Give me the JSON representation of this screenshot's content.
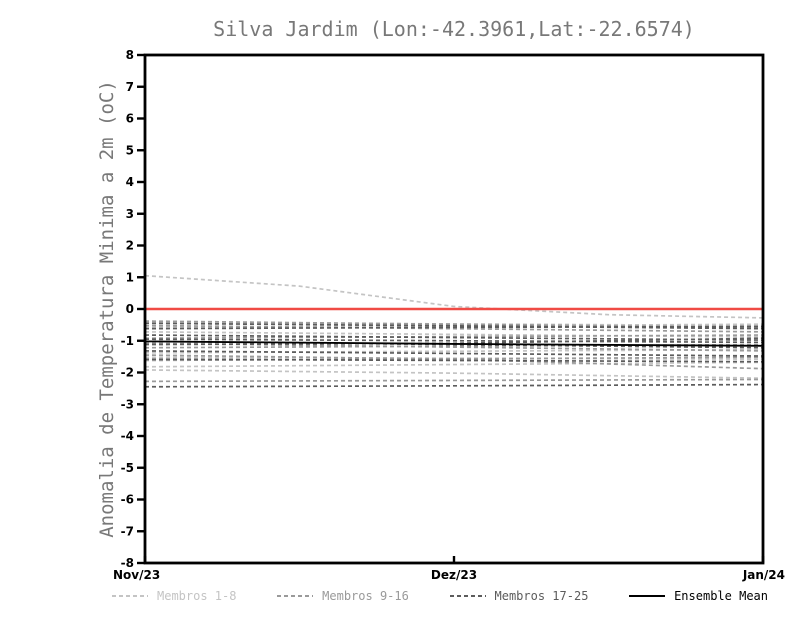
{
  "chart_data": {
    "type": "line",
    "title": "Silva Jardim (Lon:-42.3961,Lat:-22.6574)",
    "ylabel": "Anomalia de Temperatura Minima a 2m (oC)",
    "xlabel": "",
    "x_ticks": [
      "Nov/23",
      "Dez/23",
      "Jan/24"
    ],
    "x_tick_positions": [
      0,
      0.5,
      1
    ],
    "y_range": [
      -8,
      8
    ],
    "y_tick_step": 1,
    "grid": false,
    "frame_color": "#000000",
    "zero_line": {
      "value": 0,
      "color": "#f04b45"
    },
    "groups": [
      {
        "name": "Membros 1-8",
        "color": "#c4c4c4",
        "dashed": true
      },
      {
        "name": "Membros 9-16",
        "color": "#9a9a9a",
        "dashed": true
      },
      {
        "name": "Membros 17-25",
        "color": "#5c5c5c",
        "dashed": true
      }
    ],
    "members": [
      {
        "group": 0,
        "points": [
          1.05,
          0.72,
          0.08,
          -0.18,
          -0.28
        ]
      },
      {
        "group": 0,
        "points": [
          -0.42,
          -0.47,
          -0.52
        ]
      },
      {
        "group": 0,
        "points": [
          -0.58,
          -0.53,
          -0.48
        ]
      },
      {
        "group": 0,
        "points": [
          -0.72,
          -0.8,
          -0.88
        ]
      },
      {
        "group": 0,
        "points": [
          -1.38,
          -1.33,
          -1.28
        ]
      },
      {
        "group": 0,
        "points": [
          -1.82,
          -1.75,
          -1.68
        ]
      },
      {
        "group": 0,
        "points": [
          -1.92,
          -2.02,
          -2.18
        ]
      },
      {
        "group": 0,
        "points": [
          -1.52,
          -1.55,
          -1.58
        ]
      },
      {
        "group": 1,
        "points": [
          -0.38,
          -0.48,
          -0.58
        ]
      },
      {
        "group": 1,
        "points": [
          -0.52,
          -0.62,
          -0.72
        ]
      },
      {
        "group": 1,
        "points": [
          -0.92,
          -0.87,
          -0.82
        ]
      },
      {
        "group": 1,
        "points": [
          -1.08,
          -1.2,
          -1.32
        ]
      },
      {
        "group": 1,
        "points": [
          -1.22,
          -1.17,
          -1.12
        ]
      },
      {
        "group": 1,
        "points": [
          -1.45,
          -1.58,
          -1.88
        ]
      },
      {
        "group": 1,
        "points": [
          -1.62,
          -1.57,
          -1.52
        ]
      },
      {
        "group": 1,
        "points": [
          -2.28,
          -2.25,
          -2.22
        ]
      },
      {
        "group": 2,
        "points": [
          -0.45,
          -0.53,
          -0.62
        ]
      },
      {
        "group": 2,
        "points": [
          -0.62,
          -0.58,
          -0.55
        ]
      },
      {
        "group": 2,
        "points": [
          -0.82,
          -0.9,
          -0.98
        ]
      },
      {
        "group": 2,
        "points": [
          -0.95,
          -1.0,
          -1.05
        ]
      },
      {
        "group": 2,
        "points": [
          -1.02,
          -1.12,
          -1.22
        ]
      },
      {
        "group": 2,
        "points": [
          -1.12,
          -1.08,
          -0.92
        ]
      },
      {
        "group": 2,
        "points": [
          -1.32,
          -1.4,
          -1.48
        ]
      },
      {
        "group": 2,
        "points": [
          -1.58,
          -1.62,
          -1.66
        ]
      },
      {
        "group": 2,
        "points": [
          -2.45,
          -2.42,
          -2.38
        ]
      }
    ],
    "mean": {
      "name": "Ensemble Mean",
      "color": "#000000",
      "points": [
        -1.02,
        -1.1,
        -1.16
      ]
    },
    "legend": [
      {
        "label": "Membros 1-8",
        "color": "#c4c4c4",
        "style": "dashed"
      },
      {
        "label": "Membros 9-16",
        "color": "#9a9a9a",
        "style": "dashed"
      },
      {
        "label": "Membros 17-25",
        "color": "#5c5c5c",
        "style": "dashed"
      },
      {
        "label": "Ensemble Mean",
        "color": "#000000",
        "style": "solid"
      }
    ]
  }
}
